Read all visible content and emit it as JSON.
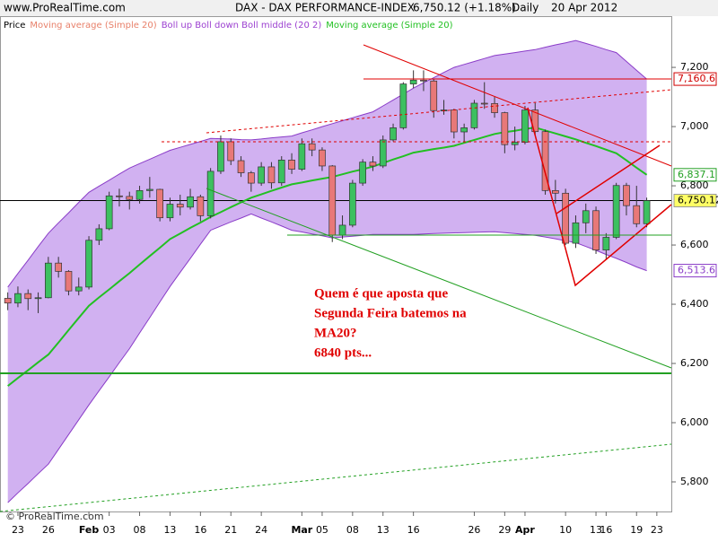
{
  "chart_data": {
    "type": "candlestick",
    "site": "www.ProRealTime.com",
    "title": "DAX - DAX PERFORMANCE-INDEX",
    "quote": "6,750.12 (+1.18%)",
    "period": "Daily",
    "date": "20 Apr 2012",
    "legend": [
      {
        "name": "Price",
        "color": "#000000"
      },
      {
        "name": "Moving average (Simple 20)",
        "color": "#e8806a"
      },
      {
        "name": "Boll up Boll down Boll middle (20 2)",
        "color": "#9b3fd0"
      },
      {
        "name": "Moving average (Simple 20)",
        "color": "#22c022"
      }
    ],
    "watermark": "© ProRealTime.com",
    "annotation": [
      "Quem é que aposta que",
      "Segunda Feira batemos na",
      "MA20?",
      "6840 pts..."
    ],
    "categories": [
      null,
      "23",
      null,
      null,
      "26",
      null,
      null,
      null,
      "Feb",
      null,
      "03",
      null,
      null,
      "08",
      null,
      null,
      "13",
      null,
      null,
      "16",
      null,
      null,
      "21",
      null,
      null,
      "24",
      null,
      null,
      null,
      "Mar",
      null,
      "05",
      null,
      null,
      "08",
      null,
      null,
      "13",
      null,
      null,
      "16",
      null,
      null,
      null,
      null,
      null,
      "26",
      null,
      null,
      "29",
      null,
      "Apr",
      null,
      null,
      null,
      "10",
      null,
      null,
      "13",
      "16",
      null,
      null,
      "19",
      null,
      "23"
    ],
    "open": [
      6420,
      6404,
      6436,
      6419,
      6422,
      6539,
      6511,
      6445,
      6458,
      6616,
      6655,
      6766,
      6764,
      6754,
      6784,
      6788,
      6692,
      6738,
      6728,
      6763,
      6699,
      6849,
      6949,
      6885,
      6844,
      6809,
      6864,
      6810,
      6887,
      6856,
      6942,
      6921,
      6867,
      6633,
      6667,
      6809,
      6880,
      6867,
      6955,
      6996,
      7144,
      7157,
      7154,
      7054,
      7056,
      6982,
      6996,
      7079,
      7078,
      7047,
      6939,
      6947,
      7056,
      6983,
      6784,
      6775,
      6606,
      6675,
      6716,
      6583,
      6626,
      6801,
      6733,
      6672,
      null
    ],
    "high": [
      6440,
      6460,
      6450,
      6440,
      6560,
      6560,
      6515,
      6490,
      6630,
      6670,
      6780,
      6790,
      6780,
      6800,
      6830,
      6790,
      6760,
      6770,
      6790,
      6770,
      6860,
      6970,
      6960,
      6900,
      6850,
      6880,
      6880,
      6900,
      6910,
      6960,
      6960,
      6930,
      6870,
      6700,
      6820,
      6890,
      6900,
      6970,
      7010,
      7150,
      7190,
      7190,
      7160,
      7090,
      7060,
      7010,
      7090,
      7150,
      7100,
      7050,
      7000,
      7070,
      7080,
      6990,
      6820,
      6790,
      6700,
      6740,
      6730,
      6640,
      6810,
      6810,
      6800,
      6760,
      null
    ],
    "low": [
      6380,
      6390,
      6380,
      6370,
      6420,
      6490,
      6430,
      6430,
      6450,
      6600,
      6650,
      6730,
      6720,
      6740,
      6760,
      6680,
      6680,
      6700,
      6720,
      6680,
      6690,
      6840,
      6870,
      6830,
      6780,
      6800,
      6790,
      6800,
      6840,
      6850,
      6900,
      6850,
      6610,
      6620,
      6660,
      6800,
      6850,
      6860,
      6950,
      6990,
      7130,
      7120,
      7030,
      7040,
      6960,
      6950,
      6990,
      7060,
      7030,
      6910,
      6920,
      6940,
      6970,
      6770,
      6740,
      6600,
      6590,
      6640,
      6570,
      6550,
      6620,
      6700,
      6660,
      6660,
      null
    ],
    "close": [
      6404,
      6436,
      6419,
      6422,
      6539,
      6511,
      6445,
      6458,
      6616,
      6655,
      6766,
      6764,
      6754,
      6784,
      6788,
      6692,
      6738,
      6728,
      6763,
      6699,
      6849,
      6949,
      6885,
      6844,
      6809,
      6864,
      6810,
      6887,
      6856,
      6942,
      6921,
      6867,
      6633,
      6667,
      6809,
      6880,
      6867,
      6955,
      6996,
      7144,
      7157,
      7154,
      7054,
      7056,
      6982,
      6996,
      7079,
      7078,
      7047,
      6939,
      6947,
      7056,
      6983,
      6784,
      6775,
      6606,
      6675,
      6716,
      6583,
      6626,
      6801,
      6733,
      6672,
      6750.12,
      null
    ],
    "close_label": "6,750.12",
    "up_color": "#3cc060",
    "down_color": "#e87878",
    "bollinger": {
      "color": "#8a3cc8",
      "fill": "#c9a3ee",
      "upper": [
        6458,
        6504,
        6549,
        6595,
        6640,
        6675,
        6709,
        6744,
        6778,
        6799,
        6819,
        6840,
        6860,
        6875,
        6890,
        6905,
        6920,
        6930,
        6940,
        6950,
        6960,
        6959,
        6958,
        6956,
        6955,
        6958,
        6962,
        6965,
        6968,
        6979,
        6989,
        7000,
        7010,
        7020,
        7030,
        7040,
        7050,
        7070,
        7090,
        7110,
        7130,
        7148,
        7165,
        7183,
        7200,
        7210,
        7220,
        7230,
        7240,
        7245,
        7250,
        7255,
        7260,
        7268,
        7276,
        7283,
        7291,
        7281,
        7271,
        7260,
        7250,
        7220,
        7190,
        7160.6,
        null
      ],
      "lower": [
        5730,
        5763,
        5795,
        5828,
        5860,
        5910,
        5960,
        6010,
        6060,
        6108,
        6155,
        6203,
        6250,
        6303,
        6355,
        6408,
        6460,
        6508,
        6555,
        6603,
        6650,
        6664,
        6678,
        6691,
        6705,
        6691,
        6678,
        6664,
        6650,
        6644,
        6637,
        6631,
        6624,
        6627,
        6630,
        6633,
        6636,
        6636,
        6636,
        6636,
        6636,
        6637,
        6639,
        6640,
        6641,
        6642,
        6643,
        6644,
        6645,
        6642,
        6639,
        6636,
        6633,
        6627,
        6621,
        6614,
        6608,
        6595,
        6582,
        6568,
        6555,
        6541,
        6526,
        6513.6,
        null
      ],
      "upper_label": "7,160.6",
      "lower_label": "6,513.6"
    },
    "ma": {
      "color": "#22c022",
      "values": [
        6124,
        6151,
        6177,
        6204,
        6230,
        6271,
        6313,
        6354,
        6395,
        6423,
        6450,
        6478,
        6505,
        6534,
        6563,
        6591,
        6620,
        6639,
        6658,
        6676,
        6695,
        6711,
        6728,
        6744,
        6760,
        6771,
        6783,
        6794,
        6805,
        6811,
        6818,
        6824,
        6830,
        6839,
        6848,
        6856,
        6865,
        6877,
        6889,
        6900,
        6912,
        6918,
        6924,
        6929,
        6935,
        6945,
        6955,
        6965,
        6975,
        6981,
        6986,
        6992,
        6997,
        6987,
        6977,
        6967,
        6957,
        6945,
        6934,
        6922,
        6910,
        6886,
        6861,
        6837.1,
        null
      ],
      "last_label": "6,837.1"
    },
    "ylim": [
      5700,
      7373
    ],
    "yticks": [
      {
        "value": 5800,
        "label": "5,800"
      },
      {
        "value": 6000,
        "label": "6,000"
      },
      {
        "value": 6200,
        "label": "6,200"
      },
      {
        "value": 6400,
        "label": "6,400"
      },
      {
        "value": 6600,
        "label": "6,600"
      },
      {
        "value": 6800,
        "label": "6,800"
      },
      {
        "value": 7000,
        "label": "7,000"
      },
      {
        "value": 7200,
        "label": "7,200"
      }
    ]
  }
}
